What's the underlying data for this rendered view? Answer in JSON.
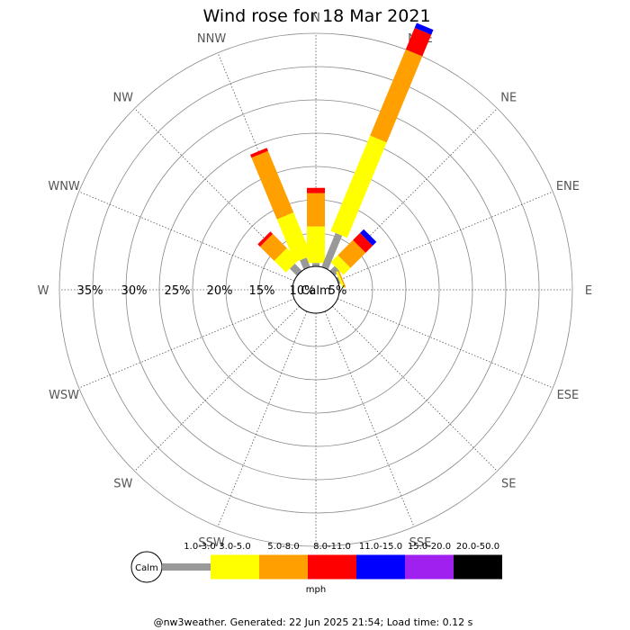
{
  "title": "Wind rose for 18 Mar 2021",
  "footer": "@nw3weather. Generated: 22 Jun 2025 21:54; Load time: 0.12 s",
  "calm_label": "Calm",
  "unit_label": "mph",
  "ring_labels": [
    "35%",
    "30%",
    "25%",
    "20%",
    "15%",
    "10%",
    "5%"
  ],
  "chart_data": {
    "type": "wind-rose",
    "title": "Wind rose for 18 Mar 2021",
    "unit": "mph",
    "directions": [
      "N",
      "NNE",
      "NE",
      "ENE",
      "E",
      "ESE",
      "SE",
      "SSE",
      "S",
      "SSW",
      "SW",
      "WSW",
      "W",
      "WNW",
      "NW",
      "NNW"
    ],
    "rings_percent": [
      5,
      10,
      15,
      20,
      25,
      30,
      35
    ],
    "speed_bins": [
      {
        "label": "1.0-3.0",
        "color": "#999999"
      },
      {
        "label": "3.0-5.0",
        "color": "#ffff00"
      },
      {
        "label": "5.0-8.0",
        "color": "#ff9f00"
      },
      {
        "label": "8.0-11.0",
        "color": "#ff0000"
      },
      {
        "label": "11.0-15.0",
        "color": "#0000ff"
      },
      {
        "label": "15.0-20.0",
        "color": "#a020f0"
      },
      {
        "label": "20.0-50.0",
        "color": "#000000"
      }
    ],
    "sectors": [
      {
        "dir": "N",
        "values": [
          0.5,
          5.5,
          5.0,
          0.8,
          0,
          0,
          0
        ]
      },
      {
        "dir": "NNE",
        "values": [
          5.5,
          15.5,
          14.0,
          3.5,
          0.8,
          0,
          0
        ]
      },
      {
        "dir": "NE",
        "values": [
          1.0,
          1.5,
          3.2,
          1.5,
          0.8,
          0,
          0
        ]
      },
      {
        "dir": "ENE",
        "values": [
          0.3,
          0.3,
          0.2,
          0,
          0,
          0,
          0
        ]
      },
      {
        "dir": "E",
        "values": [
          0,
          0,
          0,
          0,
          0,
          0,
          0
        ]
      },
      {
        "dir": "ESE",
        "values": [
          0,
          0,
          0,
          0,
          0,
          0,
          0
        ]
      },
      {
        "dir": "SE",
        "values": [
          0,
          0,
          0,
          0,
          0,
          0,
          0
        ]
      },
      {
        "dir": "SSE",
        "values": [
          0,
          0,
          0,
          0,
          0,
          0,
          0
        ]
      },
      {
        "dir": "S",
        "values": [
          0,
          0,
          0,
          0,
          0,
          0,
          0
        ]
      },
      {
        "dir": "SSW",
        "values": [
          0,
          0,
          0,
          0,
          0,
          0,
          0
        ]
      },
      {
        "dir": "SW",
        "values": [
          0,
          0,
          0,
          0,
          0,
          0,
          0
        ]
      },
      {
        "dir": "WSW",
        "values": [
          0,
          0,
          0,
          0,
          0,
          0,
          0
        ]
      },
      {
        "dir": "W",
        "values": [
          0,
          0,
          0,
          0,
          0,
          0,
          0
        ]
      },
      {
        "dir": "WNW",
        "values": [
          0,
          0,
          0,
          0,
          0,
          0,
          0
        ]
      },
      {
        "dir": "NW",
        "values": [
          1.5,
          2.5,
          3.0,
          0.5,
          0,
          0,
          0
        ]
      },
      {
        "dir": "NNW",
        "values": [
          1.5,
          7.0,
          10.0,
          0.5,
          0,
          0,
          0
        ]
      }
    ]
  }
}
